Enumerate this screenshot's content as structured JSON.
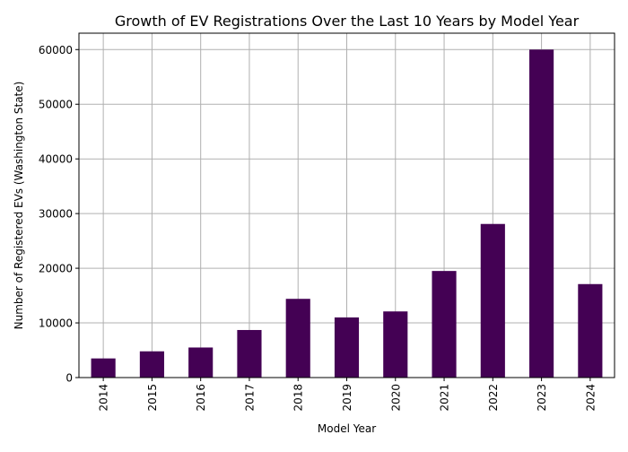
{
  "chart_data": {
    "type": "bar",
    "title": "Growth of EV Registrations Over the Last 10 Years by Model Year",
    "xlabel": "Model Year",
    "ylabel": "Number of Registered EVs (Washington State)",
    "categories": [
      "2014",
      "2015",
      "2016",
      "2017",
      "2018",
      "2019",
      "2020",
      "2021",
      "2022",
      "2023",
      "2024"
    ],
    "values": [
      3500,
      4800,
      5500,
      8700,
      14400,
      11000,
      12100,
      19500,
      28100,
      60000,
      17100
    ],
    "ylim": [
      0,
      63000
    ],
    "yticks": [
      0,
      10000,
      20000,
      30000,
      40000,
      50000,
      60000
    ],
    "grid": true,
    "legend": "none",
    "bar_color": "#440154",
    "grid_color": "#b0b0b0"
  }
}
